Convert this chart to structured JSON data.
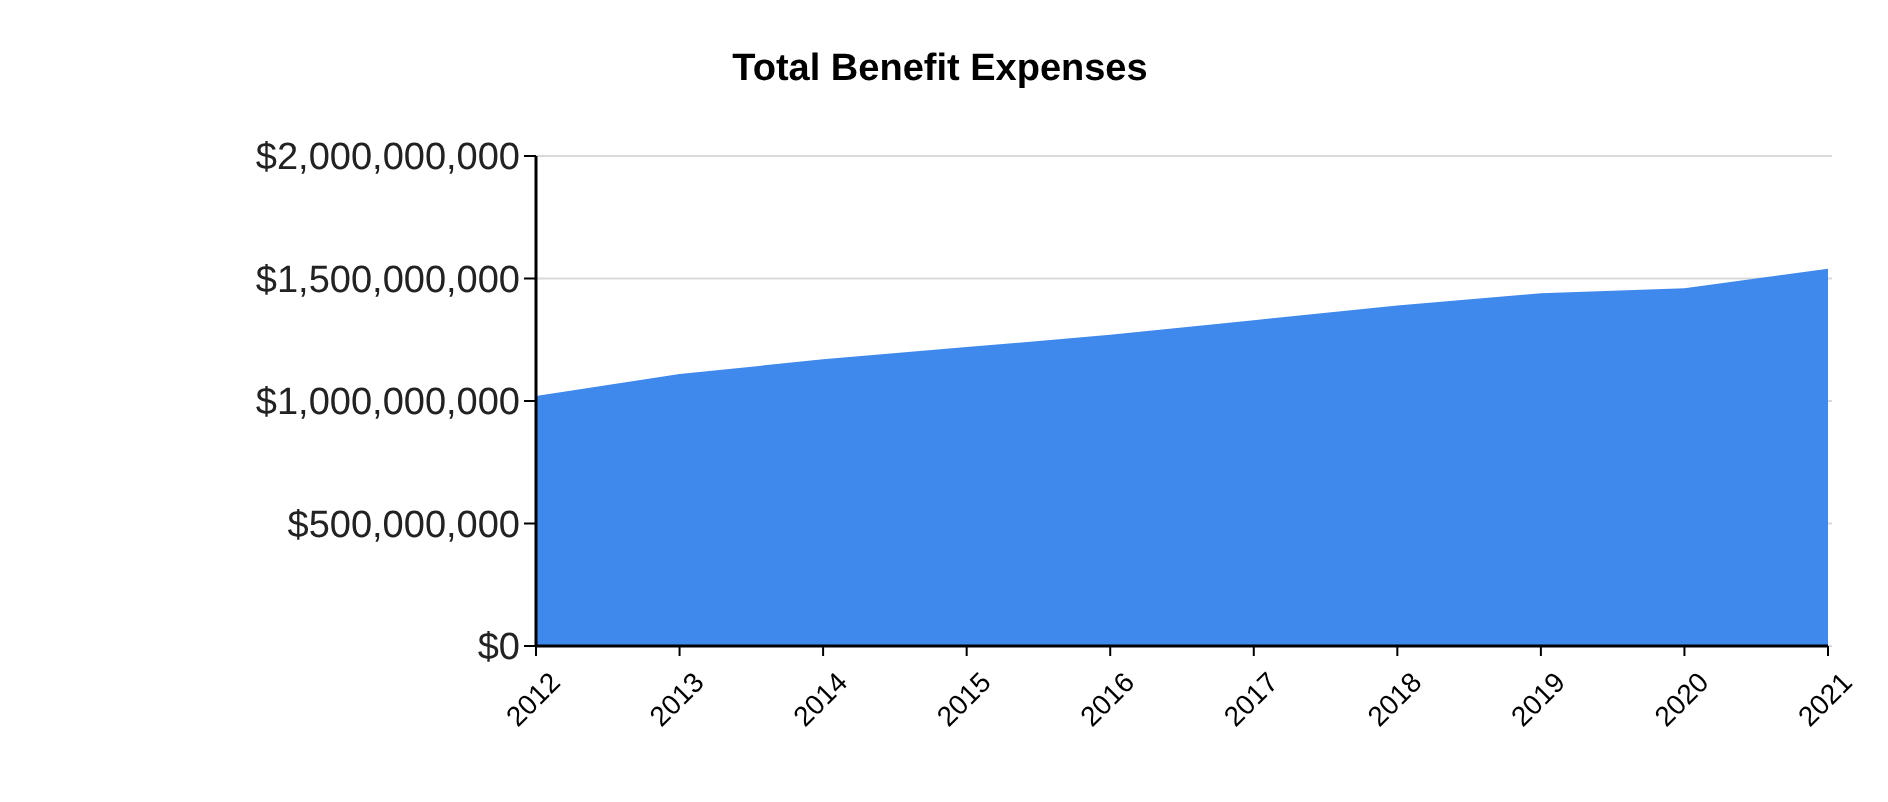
{
  "chart_data": {
    "type": "area",
    "title": "Total Benefit Expenses",
    "categories": [
      "2012",
      "2013",
      "2014",
      "2015",
      "2016",
      "2017",
      "2018",
      "2019",
      "2020",
      "2021"
    ],
    "series": [
      {
        "color": "#3f88ec",
        "values": [
          1020000000,
          1110000000,
          1170000000,
          1220000000,
          1270000000,
          1330000000,
          1390000000,
          1440000000,
          1460000000,
          1540000000
        ]
      }
    ],
    "ylim": [
      0,
      2000000000
    ],
    "yticks": [
      {
        "value": 0,
        "label": "$0"
      },
      {
        "value": 500000000,
        "label": "$500,000,000"
      },
      {
        "value": 1000000000,
        "label": "$1,000,000,000"
      },
      {
        "value": 1500000000,
        "label": "$1,500,000,000"
      },
      {
        "value": 2000000000,
        "label": "$2,000,000,000"
      }
    ],
    "grid": "y"
  }
}
